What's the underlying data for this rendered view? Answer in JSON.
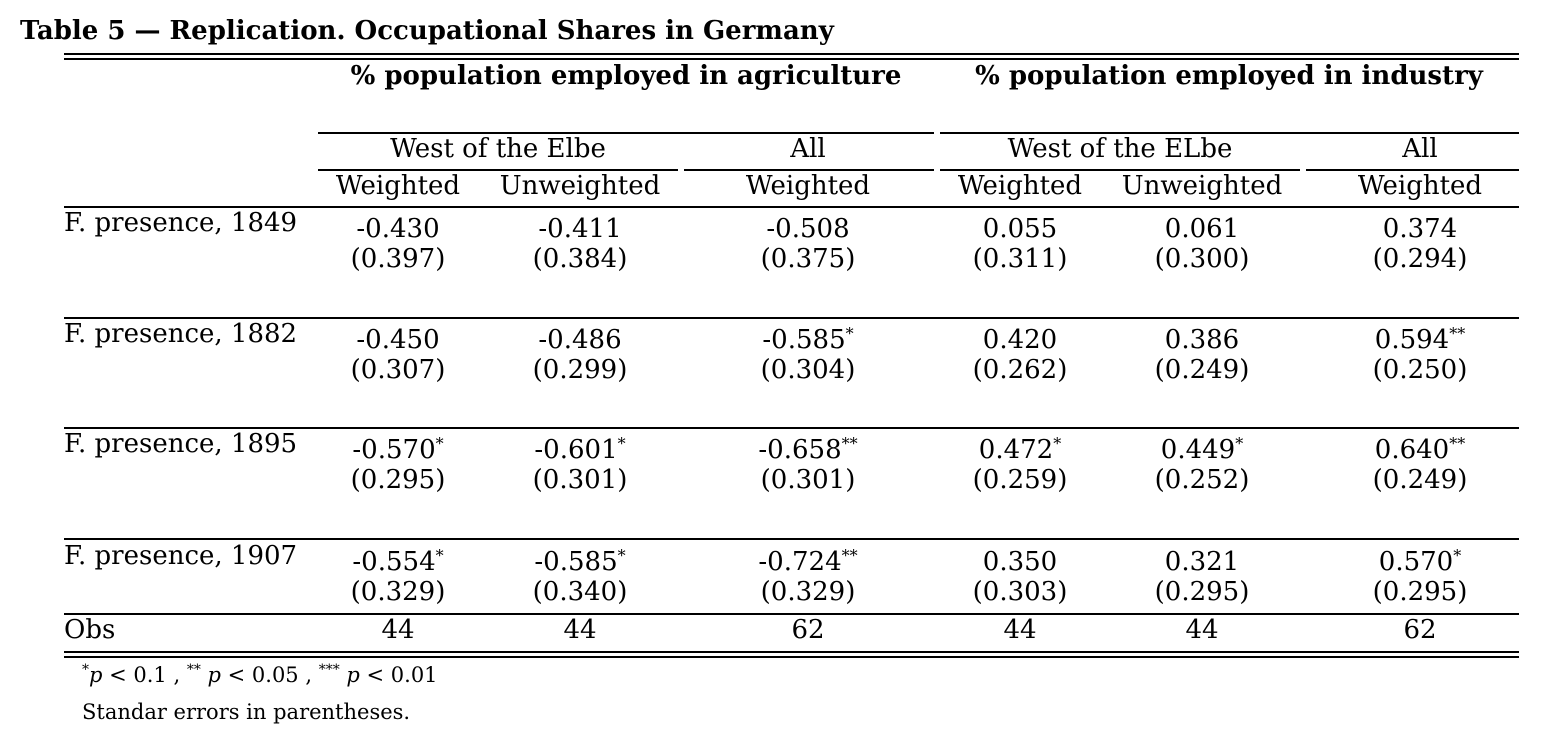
{
  "title": "Table 5 — Replication. Occupational Shares in Germany",
  "headers": {
    "group_agri": "% population employed in agriculture",
    "group_ind": "% population employed in industry",
    "sub_west_agri": "West of the Elbe",
    "sub_all_agri": "All",
    "sub_west_ind": "West of the ELbe",
    "sub_all_ind": "All",
    "col1": "Weighted",
    "col2": "Unweighted",
    "col3": "Weighted",
    "col4": "Weighted",
    "col5": "Unweighted",
    "col6": "Weighted"
  },
  "rows": [
    {
      "label": "F. presence, 1849",
      "coef": [
        "-0.430",
        "-0.411",
        "-0.508",
        "0.055",
        "0.061",
        "0.374"
      ],
      "stars": [
        "",
        "",
        "",
        "",
        "",
        ""
      ],
      "se": [
        "(0.397)",
        "(0.384)",
        "(0.375)",
        "(0.311)",
        "(0.300)",
        "(0.294)"
      ]
    },
    {
      "label": "F. presence, 1882",
      "coef": [
        "-0.450",
        "-0.486",
        "-0.585",
        "0.420",
        "0.386",
        "0.594"
      ],
      "stars": [
        "",
        "",
        "*",
        "",
        "",
        "**"
      ],
      "se": [
        "(0.307)",
        "(0.299)",
        "(0.304)",
        "(0.262)",
        "(0.249)",
        "(0.250)"
      ]
    },
    {
      "label": "F. presence, 1895",
      "coef": [
        "-0.570",
        "-0.601",
        "-0.658",
        "0.472",
        "0.449",
        "0.640"
      ],
      "stars": [
        "*",
        "*",
        "**",
        "*",
        "*",
        "**"
      ],
      "se": [
        "(0.295)",
        "(0.301)",
        "(0.301)",
        "(0.259)",
        "(0.252)",
        "(0.249)"
      ]
    },
    {
      "label": "F. presence, 1907",
      "coef": [
        "-0.554",
        "-0.585",
        "-0.724",
        "0.350",
        "0.321",
        "0.570"
      ],
      "stars": [
        "*",
        "*",
        "**",
        "",
        "",
        "*"
      ],
      "se": [
        "(0.329)",
        "(0.340)",
        "(0.329)",
        "(0.303)",
        "(0.295)",
        "(0.295)"
      ]
    }
  ],
  "obs": {
    "label": "Obs",
    "values": [
      "44",
      "44",
      "62",
      "44",
      "44",
      "62"
    ]
  },
  "notes": {
    "s1": "*",
    "p1": "p",
    "t1": " < 0.1 , ",
    "s2": "**",
    "t2": " ",
    "p2": "p",
    "t3": " < 0.05 , ",
    "s3": "***",
    "t4": " ",
    "p3": "p",
    "t5": " < 0.01",
    "line2": "Standar errors in parentheses."
  }
}
